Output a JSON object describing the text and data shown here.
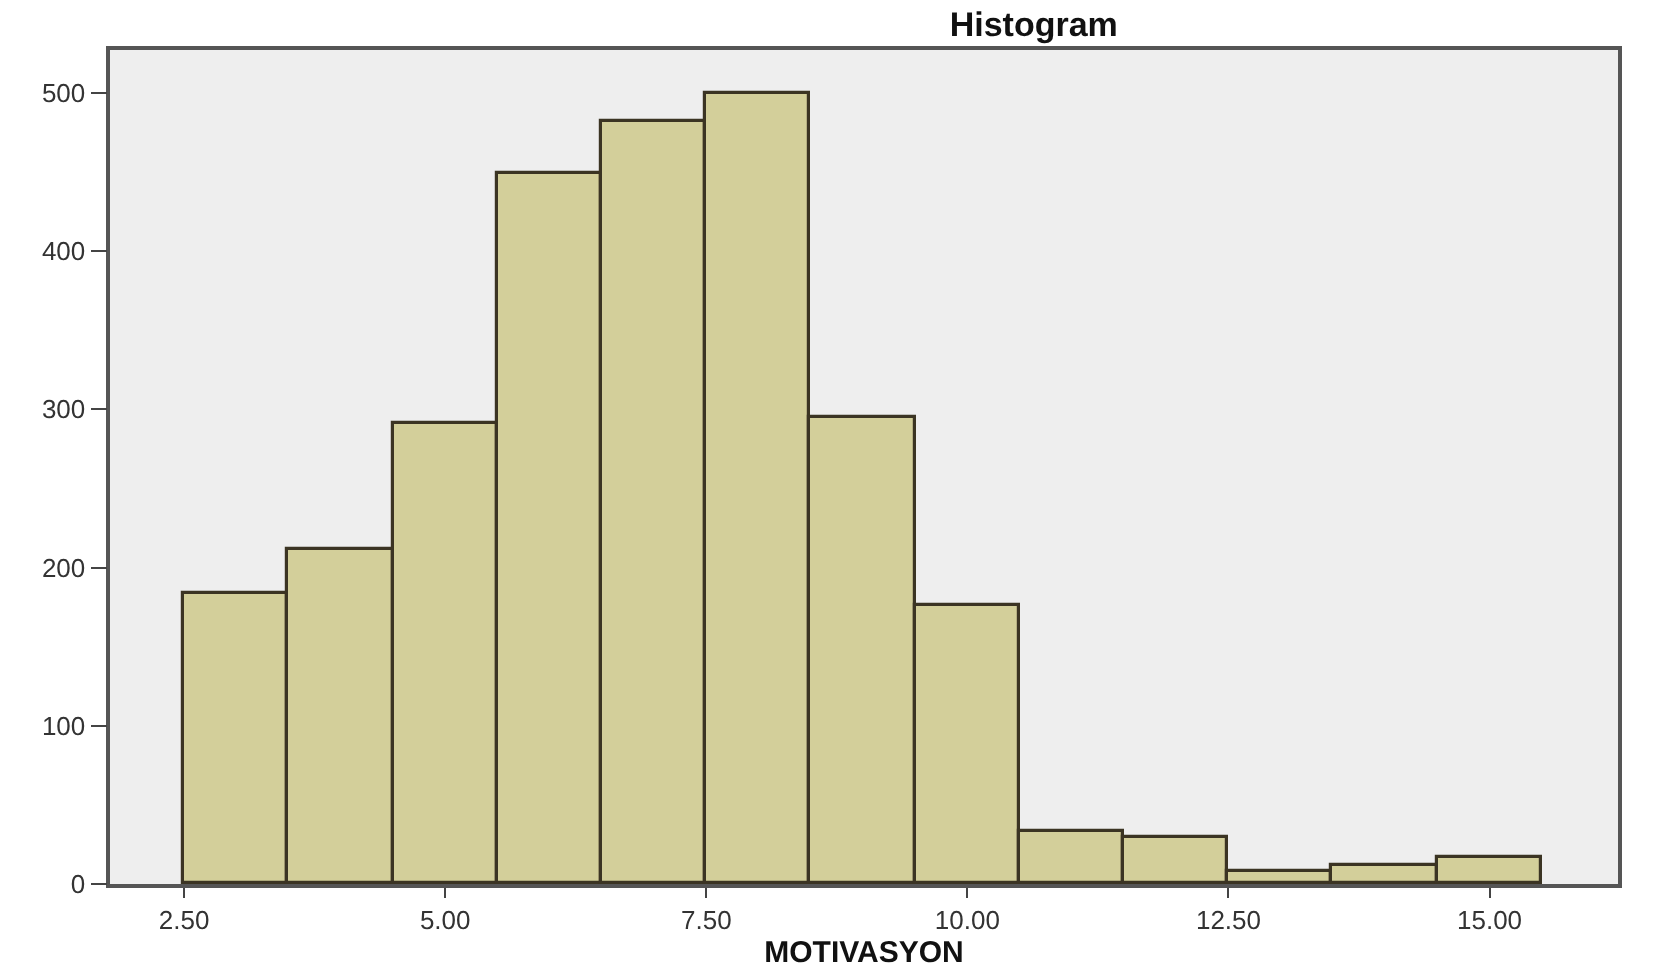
{
  "chart_data": {
    "type": "histogram",
    "title": "Histogram",
    "xlabel": "MOTIVASYON",
    "bins": [
      2.5,
      3.5,
      4.5,
      5.5,
      6.5,
      7.5,
      8.5,
      9.5,
      10.5,
      11.5,
      12.5,
      13.5,
      14.5,
      15.5
    ],
    "values": [
      183,
      211,
      291,
      449,
      481,
      499,
      294,
      176,
      33,
      29,
      7,
      12,
      16
    ],
    "color": "#d3cf9a",
    "xlim": [
      1.79,
      16.23
    ],
    "ylim": [
      0,
      527
    ],
    "xticks": [
      {
        "value": 2.5,
        "label": "2.50"
      },
      {
        "value": 5,
        "label": "5.00"
      },
      {
        "value": 7.5,
        "label": "7.50"
      },
      {
        "value": 10,
        "label": "10.00"
      },
      {
        "value": 12.5,
        "label": "12.50"
      },
      {
        "value": 15,
        "label": "15.00"
      }
    ],
    "yticks": [
      0,
      100,
      200,
      300,
      400,
      500
    ],
    "grid": false
  }
}
